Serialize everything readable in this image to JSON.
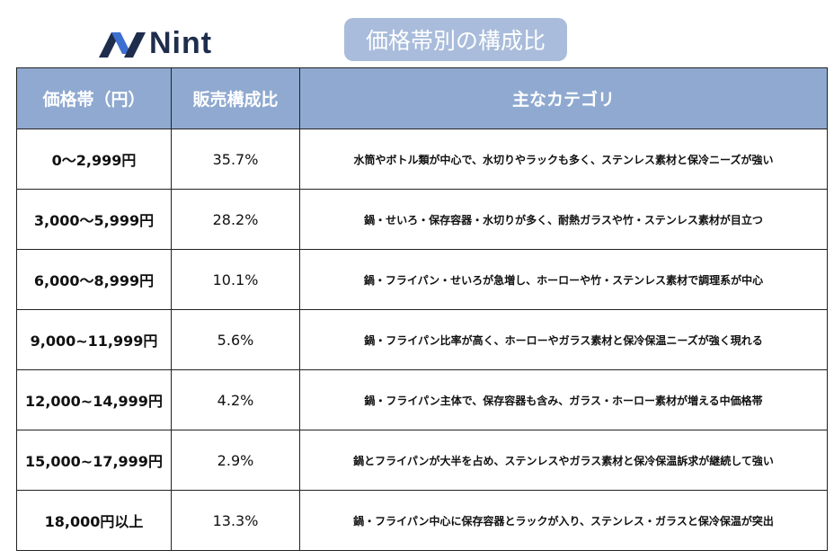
{
  "header": {
    "logo": "Nint",
    "title": "価格帯別の構成比"
  },
  "table": {
    "columns": [
      "価格帯（円）",
      "販売構成比",
      "主なカテゴリ"
    ],
    "rows": [
      [
        "0〜2,999円",
        "35.7%",
        "水筒やボトル類が中心で、水切りやラックも多く、ステンレス素材と保冷ニーズが強い"
      ],
      [
        "3,000〜5,999円",
        "28.2%",
        "鍋・せいろ・保存容器・水切りが多く、耐熱ガラスや竹・ステンレス素材が目立つ"
      ],
      [
        "6,000〜8,999円",
        "10.1%",
        "鍋・フライパン・せいろが急増し、ホーローや竹・ステンレス素材で調理系が中心"
      ],
      [
        "9,000~11,999円",
        "5.6%",
        "鍋・フライパン比率が高く、ホーローやガラス素材と保冷保温ニーズが強く現れる"
      ],
      [
        "12,000~14,999円",
        "4.2%",
        "鍋・フライパン主体で、保存容器も含み、ガラス・ホーロー素材が増える中価格帯"
      ],
      [
        "15,000~17,999円",
        "2.9%",
        "鍋とフライパンが大半を占め、ステンレスやガラス素材と保冷保温訴求が継続して強い"
      ],
      [
        "18,000円以上",
        "13.3%",
        "鍋・フライパン中心に保存容器とラックが入り、ステンレス・ガラスと保冷保温が突出"
      ]
    ]
  }
}
